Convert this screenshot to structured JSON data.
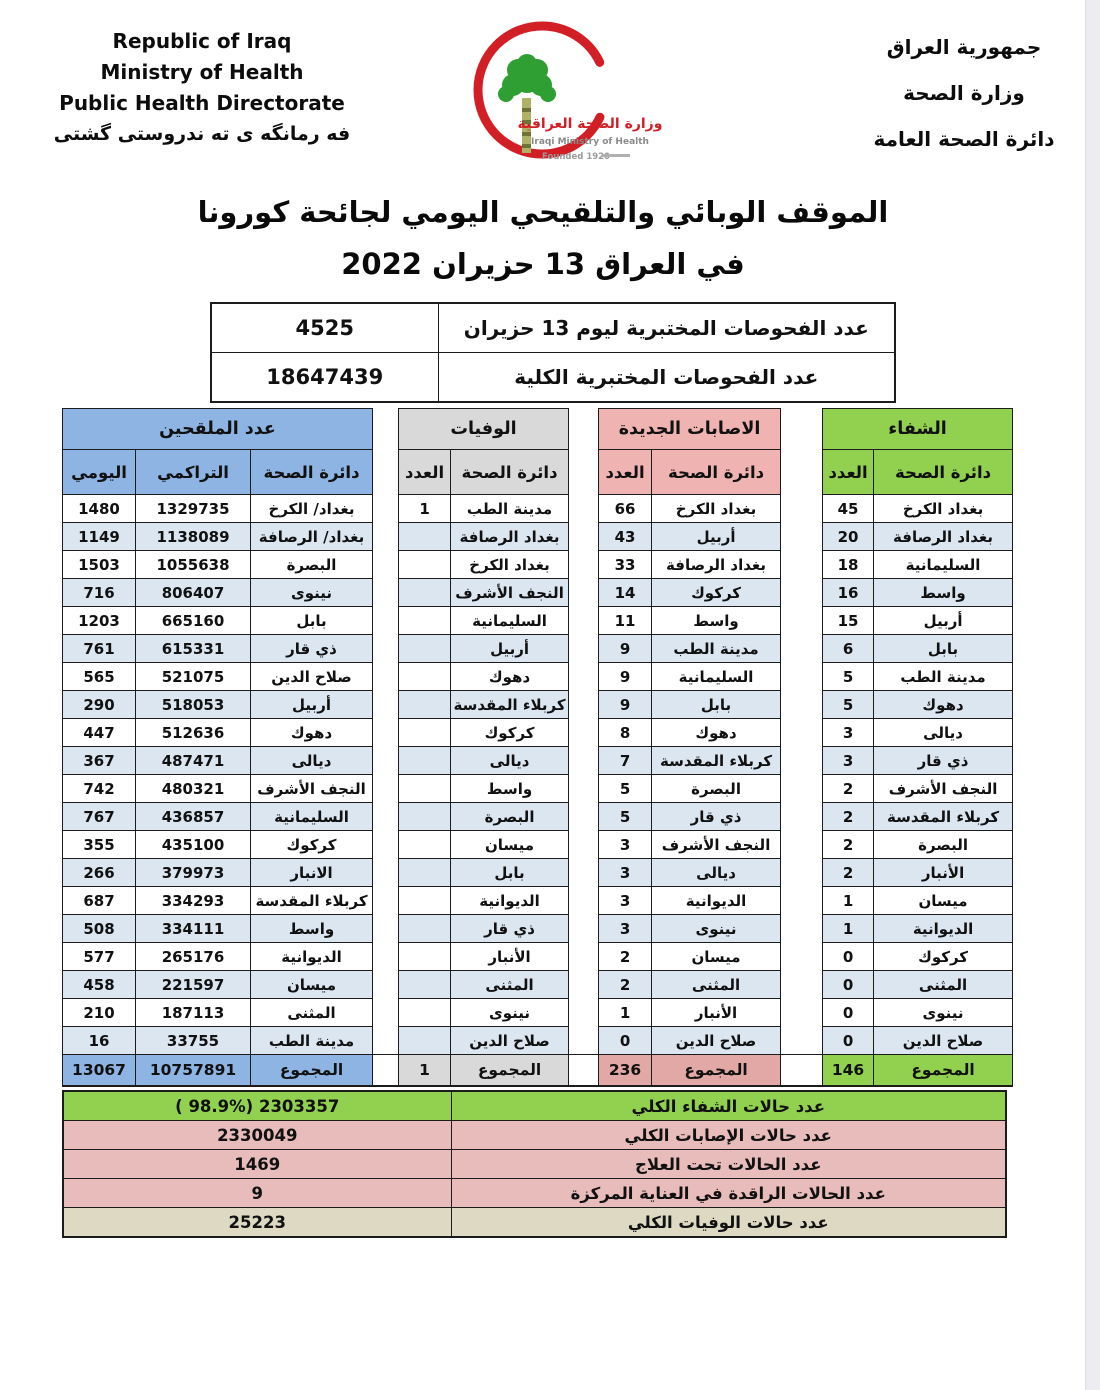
{
  "header": {
    "left": {
      "lines": [
        "Republic of Iraq",
        "Ministry of Health",
        "Public Health Directorate",
        "فه رمانگه ى ته ندروستى گشتى"
      ]
    },
    "right": {
      "lines": [
        "جمهورية العراق",
        "وزارة الصحة",
        "دائرة الصحة العامة"
      ]
    },
    "logo": {
      "arabic_name": "وزارة الصحة العراقية",
      "english_name": "Iraqi Ministry of Health",
      "founded": "Founded 1920"
    }
  },
  "title": {
    "line1": "الموقف الوبائي والتلقيحي اليومي لجائحة كورونا",
    "line2": "في العراق  13 حزيران 2022"
  },
  "tests_table": {
    "daily": {
      "label": "عدد الفحوصات المختبرية  ليوم 13   حزيران",
      "value": "4525"
    },
    "total": {
      "label": "عدد الفحوصات المختبرية الكلية",
      "value": "18647439"
    }
  },
  "main_table": {
    "groups": {
      "vaccinated": {
        "title": "عدد الملقحين",
        "col_daily": "اليومي",
        "col_cumulative": "التراكمي",
        "col_dept": "دائرة الصحة"
      },
      "deaths": {
        "title": "الوفيات",
        "col_count": "العدد",
        "col_dept": "دائرة الصحة"
      },
      "new_cases": {
        "title": "الاصابات الجديدة",
        "col_count": "العدد",
        "col_dept": "دائرة الصحة"
      },
      "recovered": {
        "title": "الشفاء",
        "col_count": "العدد",
        "col_dept": "دائرة الصحة"
      }
    },
    "rows": [
      {
        "vacc_daily": "1480",
        "vacc_cum": "1329735",
        "vacc_dept": "بغداد/ الكرخ",
        "death_count": "1",
        "death_dept": "مدينة الطب",
        "case_count": "66",
        "case_dept": "بغداد الكرخ",
        "rec_count": "45",
        "rec_dept": "بغداد الكرخ"
      },
      {
        "vacc_daily": "1149",
        "vacc_cum": "1138089",
        "vacc_dept": "بغداد/ الرصافة",
        "death_count": "",
        "death_dept": "بغداد الرصافة",
        "case_count": "43",
        "case_dept": "أربيل",
        "rec_count": "20",
        "rec_dept": "بغداد الرصافة"
      },
      {
        "vacc_daily": "1503",
        "vacc_cum": "1055638",
        "vacc_dept": "البصرة",
        "death_count": "",
        "death_dept": "بغداد الكرخ",
        "case_count": "33",
        "case_dept": "بغداد الرصافة",
        "rec_count": "18",
        "rec_dept": "السليمانية"
      },
      {
        "vacc_daily": "716",
        "vacc_cum": "806407",
        "vacc_dept": "نينوى",
        "death_count": "",
        "death_dept": "النجف الأشرف",
        "case_count": "14",
        "case_dept": "كركوك",
        "rec_count": "16",
        "rec_dept": "واسط"
      },
      {
        "vacc_daily": "1203",
        "vacc_cum": "665160",
        "vacc_dept": "بابل",
        "death_count": "",
        "death_dept": "السليمانية",
        "case_count": "11",
        "case_dept": "واسط",
        "rec_count": "15",
        "rec_dept": "أربيل"
      },
      {
        "vacc_daily": "761",
        "vacc_cum": "615331",
        "vacc_dept": "ذي قار",
        "death_count": "",
        "death_dept": "أربيل",
        "case_count": "9",
        "case_dept": "مدينة الطب",
        "rec_count": "6",
        "rec_dept": "بابل"
      },
      {
        "vacc_daily": "565",
        "vacc_cum": "521075",
        "vacc_dept": "صلاح الدين",
        "death_count": "",
        "death_dept": "دهوك",
        "case_count": "9",
        "case_dept": "السليمانية",
        "rec_count": "5",
        "rec_dept": "مدينة الطب"
      },
      {
        "vacc_daily": "290",
        "vacc_cum": "518053",
        "vacc_dept": "أربيل",
        "death_count": "",
        "death_dept": "كربلاء المقدسة",
        "case_count": "9",
        "case_dept": "بابل",
        "rec_count": "5",
        "rec_dept": "دهوك"
      },
      {
        "vacc_daily": "447",
        "vacc_cum": "512636",
        "vacc_dept": "دهوك",
        "death_count": "",
        "death_dept": "كركوك",
        "case_count": "8",
        "case_dept": "دهوك",
        "rec_count": "3",
        "rec_dept": "ديالى"
      },
      {
        "vacc_daily": "367",
        "vacc_cum": "487471",
        "vacc_dept": "ديالى",
        "death_count": "",
        "death_dept": "ديالى",
        "case_count": "7",
        "case_dept": "كربلاء المقدسة",
        "rec_count": "3",
        "rec_dept": "ذي قار"
      },
      {
        "vacc_daily": "742",
        "vacc_cum": "480321",
        "vacc_dept": "النجف الأشرف",
        "death_count": "",
        "death_dept": "واسط",
        "case_count": "5",
        "case_dept": "البصرة",
        "rec_count": "2",
        "rec_dept": "النجف الأشرف"
      },
      {
        "vacc_daily": "767",
        "vacc_cum": "436857",
        "vacc_dept": "السليمانية",
        "death_count": "",
        "death_dept": "البصرة",
        "case_count": "5",
        "case_dept": "ذي قار",
        "rec_count": "2",
        "rec_dept": "كربلاء المقدسة"
      },
      {
        "vacc_daily": "355",
        "vacc_cum": "435100",
        "vacc_dept": "كركوك",
        "death_count": "",
        "death_dept": "ميسان",
        "case_count": "3",
        "case_dept": "النجف الأشرف",
        "rec_count": "2",
        "rec_dept": "البصرة"
      },
      {
        "vacc_daily": "266",
        "vacc_cum": "379973",
        "vacc_dept": "الانبار",
        "death_count": "",
        "death_dept": "بابل",
        "case_count": "3",
        "case_dept": "ديالى",
        "rec_count": "2",
        "rec_dept": "الأنبار"
      },
      {
        "vacc_daily": "687",
        "vacc_cum": "334293",
        "vacc_dept": "كربلاء المقدسة",
        "death_count": "",
        "death_dept": "الديوانية",
        "case_count": "3",
        "case_dept": "الديوانية",
        "rec_count": "1",
        "rec_dept": "ميسان"
      },
      {
        "vacc_daily": "508",
        "vacc_cum": "334111",
        "vacc_dept": "واسط",
        "death_count": "",
        "death_dept": "ذي قار",
        "case_count": "3",
        "case_dept": "نينوى",
        "rec_count": "1",
        "rec_dept": "الديوانية"
      },
      {
        "vacc_daily": "577",
        "vacc_cum": "265176",
        "vacc_dept": "الديوانية",
        "death_count": "",
        "death_dept": "الأنبار",
        "case_count": "2",
        "case_dept": "ميسان",
        "rec_count": "0",
        "rec_dept": "كركوك"
      },
      {
        "vacc_daily": "458",
        "vacc_cum": "221597",
        "vacc_dept": "ميسان",
        "death_count": "",
        "death_dept": "المثنى",
        "case_count": "2",
        "case_dept": "المثنى",
        "rec_count": "0",
        "rec_dept": "المثنى"
      },
      {
        "vacc_daily": "210",
        "vacc_cum": "187113",
        "vacc_dept": "المثنى",
        "death_count": "",
        "death_dept": "نينوى",
        "case_count": "1",
        "case_dept": "الأنبار",
        "rec_count": "0",
        "rec_dept": "نينوى"
      },
      {
        "vacc_daily": "16",
        "vacc_cum": "33755",
        "vacc_dept": "مدينة الطب",
        "death_count": "",
        "death_dept": "صلاح الدين",
        "case_count": "0",
        "case_dept": "صلاح الدين",
        "rec_count": "0",
        "rec_dept": "صلاح الدين"
      }
    ],
    "totals": {
      "label": "المجموع",
      "vacc_daily": "13067",
      "vacc_cum": "10757891",
      "death_count": "1",
      "case_count": "236",
      "rec_count": "146"
    }
  },
  "summary_table": {
    "rows": [
      {
        "label": "عدد حالات الشفاء الكلي",
        "value": "( 98.9%)  2303357",
        "tone": "green"
      },
      {
        "label": "عدد حالات الإصابات الكلي",
        "value": "2330049",
        "tone": "pink"
      },
      {
        "label": "عدد الحالات تحت العلاج",
        "value": "1469",
        "tone": "pink"
      },
      {
        "label": "عدد الحالات الراقدة في العناية المركزة",
        "value": "9",
        "tone": "pink"
      },
      {
        "label": "عدد حالات الوفيات الكلي",
        "value": "25223",
        "tone": "tan"
      }
    ]
  },
  "colors": {
    "recovered_green": "#92D050",
    "vaccinated_blue": "#8DB4E2",
    "deaths_gray": "#D9D9D9",
    "new_cases_pink_header": "#EFB3B1",
    "new_cases_pink_total": "#E2A8A5",
    "row_stripe": "#DCE6F1",
    "summary_pink": "#E7BCBA",
    "deaths_total_tan": "#DDD9C3",
    "crescent_red": "#D21F26",
    "tree_green": "#2F9E33"
  }
}
